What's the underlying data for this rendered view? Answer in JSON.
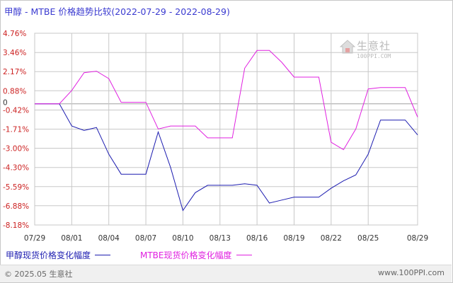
{
  "title": "甲醇 - MTBE 价格趋势比较(2022-07-29 - 2022-08-29)",
  "watermark": {
    "name": "生意社",
    "url": "100PPI.COM"
  },
  "footer": {
    "copyright": "© 2025.05 生意社",
    "url": "www.100PPI.com"
  },
  "colors": {
    "series1": "#1c1cb0",
    "series2": "#e020e0",
    "grid": "#c8c8c8",
    "title": "#3a3ad0",
    "ytick": "#cc2222",
    "xtick": "#333333"
  },
  "chart_data": {
    "type": "line",
    "title": "甲醇 - MTBE 价格趋势比较(2022-07-29 - 2022-08-29)",
    "xlabel": "",
    "ylabel": "",
    "x_ticks": [
      "07/29",
      "08/01",
      "08/04",
      "08/07",
      "08/10",
      "08/13",
      "08/16",
      "08/19",
      "08/22",
      "08/25",
      "08/29"
    ],
    "y_ticks": [
      "4.76%",
      "3.46%",
      "2.17%",
      "0.88%",
      "-0.42%",
      "-1.71%",
      "-3.00%",
      "-4.30%",
      "-5.59%",
      "-6.88%",
      "-8.18%"
    ],
    "zero_label": "0",
    "ylim": [
      -8.18,
      4.76
    ],
    "grid": true,
    "legend_position": "bottom",
    "x": [
      "07/29",
      "07/30",
      "07/31",
      "08/01",
      "08/02",
      "08/03",
      "08/04",
      "08/05",
      "08/06",
      "08/07",
      "08/08",
      "08/09",
      "08/10",
      "08/11",
      "08/12",
      "08/13",
      "08/14",
      "08/15",
      "08/16",
      "08/17",
      "08/18",
      "08/19",
      "08/20",
      "08/21",
      "08/22",
      "08/23",
      "08/24",
      "08/25",
      "08/26",
      "08/27",
      "08/28",
      "08/29"
    ],
    "series": [
      {
        "name": "甲醇现货价格变化幅度",
        "values": [
          0,
          0,
          0,
          -1.5,
          -1.8,
          -1.6,
          -3.4,
          -4.75,
          -4.75,
          -4.75,
          -1.9,
          -4.3,
          -7.2,
          -6.0,
          -5.5,
          -5.5,
          -5.5,
          -5.4,
          -5.5,
          -6.7,
          -6.5,
          -6.3,
          -6.3,
          -6.3,
          -5.7,
          -5.2,
          -4.8,
          -3.4,
          -1.1,
          -1.1,
          -1.1,
          -2.1
        ]
      },
      {
        "name": "MTBE现货价格变化幅度",
        "values": [
          0,
          0,
          0,
          0.9,
          2.1,
          2.2,
          1.7,
          0.1,
          0.1,
          0.1,
          -1.7,
          -1.5,
          -1.5,
          -1.5,
          -2.3,
          -2.3,
          -2.3,
          2.4,
          3.6,
          3.6,
          2.8,
          1.8,
          1.8,
          1.8,
          -2.6,
          -3.1,
          -1.7,
          1.0,
          1.1,
          1.1,
          1.1,
          -0.9
        ]
      }
    ]
  }
}
